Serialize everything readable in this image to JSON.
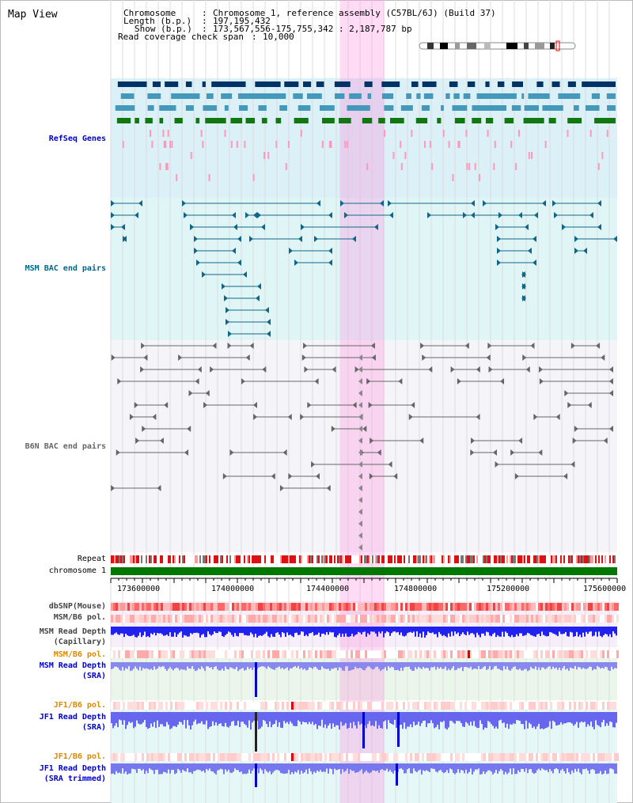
{
  "title": "Map View",
  "header": {
    "chromosome_key": "Chromosome",
    "chromosome_value": "Chromosome 1, reference assembly (C57BL/6J) (Build 37)",
    "length_key": "Length (b.p.)",
    "length_value": "197,195,432",
    "show_key": "Show (b.p.)",
    "show_value": "173,567,556-175,755,342 : 2,187,787 bp",
    "span_key": "Read coverage check span",
    "span_value": "10,000"
  },
  "tracks": [
    {
      "id": "refseq",
      "label": "RefSeq Genes",
      "color": "#0000cc"
    },
    {
      "id": "msm-bac",
      "label": "MSM BAC end pairs",
      "color": "#006688"
    },
    {
      "id": "b6n-bac",
      "label": "B6N BAC end pairs",
      "color": "#666666"
    },
    {
      "id": "repeat",
      "label": "Repeat",
      "color": "#000000"
    },
    {
      "id": "chrom",
      "label": "chromosome 1",
      "color": "#000000"
    },
    {
      "id": "dbsnp",
      "label": "dbSNP(Mouse)",
      "color": "#444444"
    },
    {
      "id": "msm-b6-pol-1",
      "label": "MSM/B6 pol.",
      "color": "#444444"
    },
    {
      "id": "msm-depth-cap-1",
      "label": "MSM Read Depth",
      "color": "#444444"
    },
    {
      "id": "msm-depth-cap-2",
      "label": "(Capillary)",
      "color": "#444444"
    },
    {
      "id": "msm-b6-pol-2",
      "label": "MSM/B6 pol.",
      "color": "#dd8800"
    },
    {
      "id": "msm-depth-sra-1",
      "label": "MSM Read Depth",
      "color": "#0000cc"
    },
    {
      "id": "msm-depth-sra-2",
      "label": "(SRA)",
      "color": "#0000cc"
    },
    {
      "id": "jf1-b6-pol-1",
      "label": "JF1/B6 pol.",
      "color": "#dd8800"
    },
    {
      "id": "jf1-depth-sra-1",
      "label": "JF1 Read Depth",
      "color": "#0000cc"
    },
    {
      "id": "jf1-depth-sra-2",
      "label": "(SRA)",
      "color": "#0000cc"
    },
    {
      "id": "jf1-b6-pol-2",
      "label": "JF1/B6 pol.",
      "color": "#dd8800"
    },
    {
      "id": "jf1-depth-trim-1",
      "label": "JF1 Read Depth",
      "color": "#0000cc"
    },
    {
      "id": "jf1-depth-trim-2",
      "label": "(SRA trimmed)",
      "color": "#0000cc"
    }
  ],
  "axis": {
    "ticks": [
      "173600000",
      "174000000",
      "174400000",
      "174800000",
      "175200000",
      "175600000"
    ],
    "range_bp": [
      173567556,
      175755342
    ]
  },
  "highlight_bp": [
    174557000,
    174749000
  ],
  "colors": {
    "refseq_bg": "#dcf0f8",
    "msm_bg": "#e0f6f6",
    "b6n_bg": "#f5f5f9",
    "highlight": "#ff88dd",
    "gene_dark": "#003366",
    "gene_mid": "#4499bb",
    "gene_green": "#117711",
    "msm_pair": "#116688",
    "b6n_pair": "#666666",
    "chrom_bar": "#007700"
  }
}
